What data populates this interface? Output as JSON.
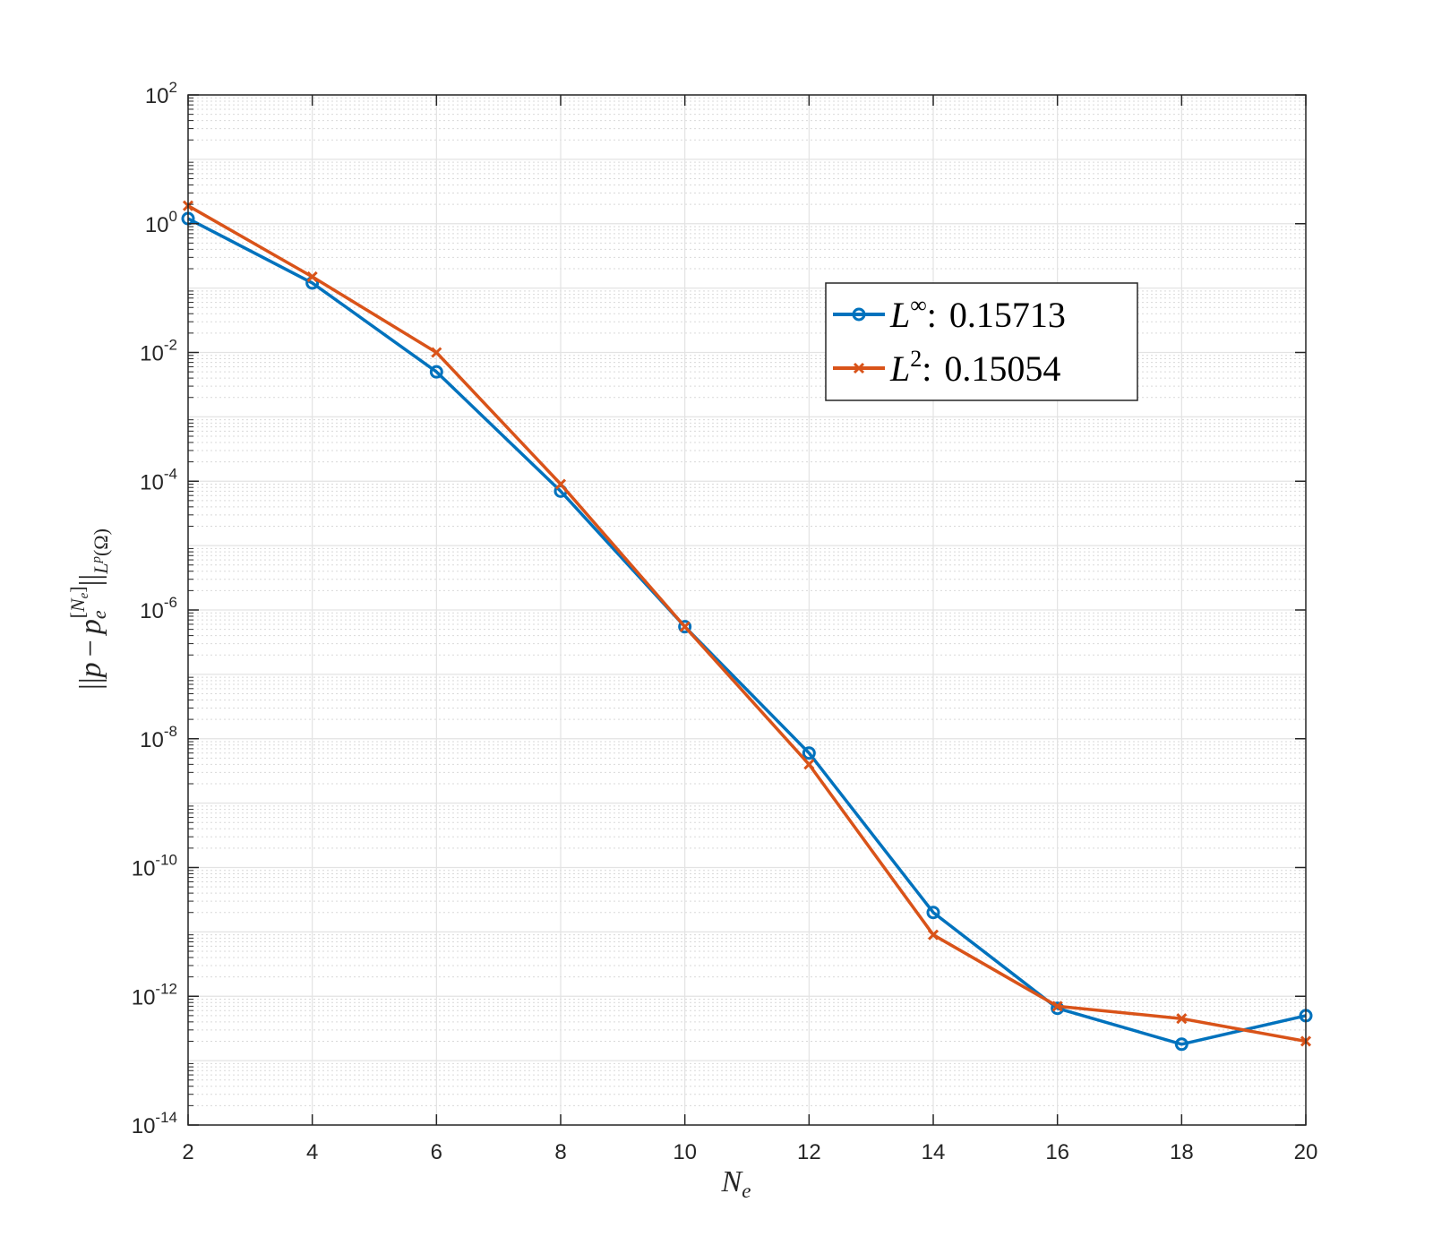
{
  "chart_data": {
    "type": "line",
    "title": "",
    "xlabel": "N_e",
    "ylabel": "||p − p_e^[N_e]||_{L^p(Ω)}",
    "x": [
      2,
      4,
      6,
      8,
      10,
      12,
      14,
      16,
      18,
      20
    ],
    "xlim": [
      2,
      20
    ],
    "x_ticks": [
      2,
      4,
      6,
      8,
      10,
      12,
      14,
      16,
      18,
      20
    ],
    "y_scale": "log",
    "ylim": [
      1e-14,
      100
    ],
    "y_tick_exponents": [
      2,
      0,
      -2,
      -4,
      -6,
      -8,
      -10,
      -12,
      -14
    ],
    "grid": true,
    "minor_grid": true,
    "legend_position": "upper-right (inside)",
    "series": [
      {
        "name": "L^∞: 0.15713",
        "marker": "circle",
        "color": "#0072BD",
        "values": [
          1.2,
          0.12,
          0.005,
          7e-05,
          5.5e-07,
          6e-09,
          2e-11,
          6.5e-13,
          1.8e-13,
          5e-13
        ]
      },
      {
        "name": "L^2: 0.15054",
        "marker": "x",
        "color": "#D95319",
        "values": [
          1.9,
          0.15,
          0.01,
          9e-05,
          5.5e-07,
          4e-09,
          9e-12,
          7e-13,
          4.5e-13,
          2e-13
        ]
      }
    ]
  },
  "legend": {
    "entries": [
      {
        "symbol": "L",
        "sup": "∞",
        "value": "0.15713"
      },
      {
        "symbol": "L",
        "sup": "2",
        "value": "0.15054"
      }
    ]
  },
  "axis_text": {
    "x_base": "N",
    "x_sub": "e",
    "y_parts": {
      "norm": "||",
      "p": "p",
      "minus": "−",
      "pe": "p",
      "e": "e",
      "bracket_open": "[",
      "N": "N",
      "Ne_sub": "e",
      "bracket_close": "]",
      "L": "L",
      "Lsup": "p",
      "omega": "(Ω)"
    }
  },
  "y_tick_base": "10"
}
